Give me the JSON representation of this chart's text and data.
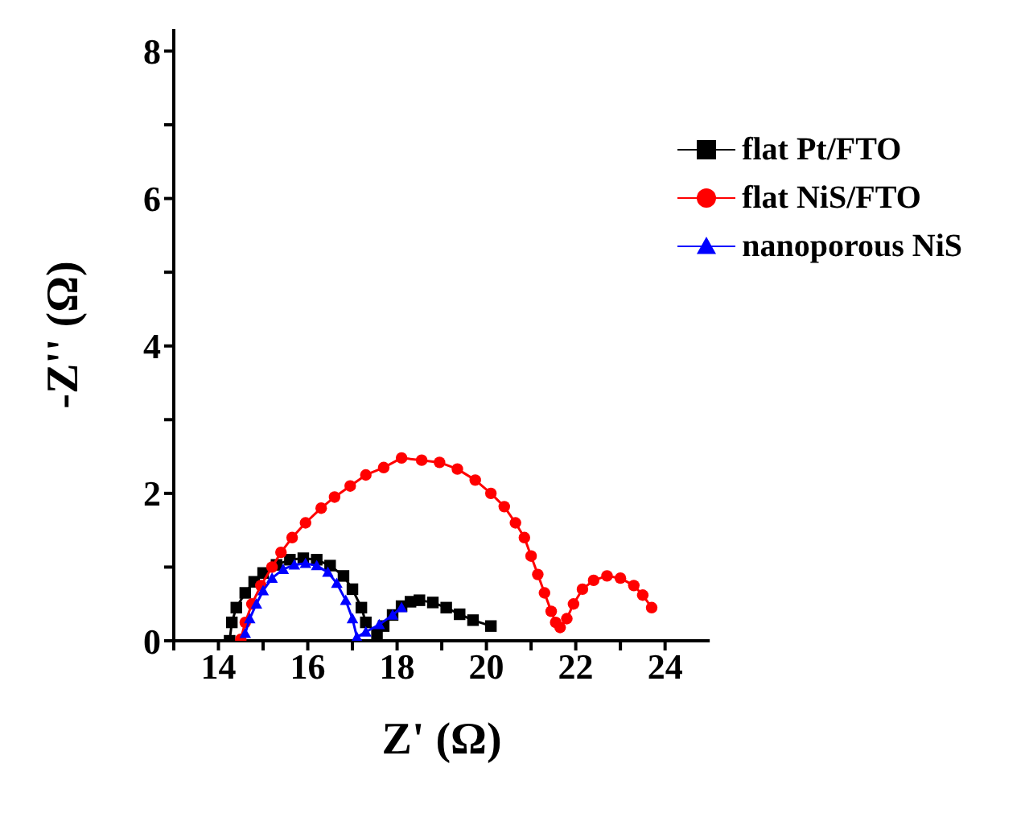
{
  "chart_data": {
    "type": "line",
    "xlabel": "Z' (Ω)",
    "ylabel": "-Z'' (Ω)",
    "xlim": [
      13,
      25
    ],
    "ylim": [
      0,
      8.3
    ],
    "xticks": [
      {
        "value": 13,
        "label": null
      },
      14,
      {
        "value": 15,
        "label": null
      },
      16,
      {
        "value": 17,
        "label": null
      },
      18,
      {
        "value": 19,
        "label": null
      },
      20,
      {
        "value": 21,
        "label": null
      },
      22,
      {
        "value": 23,
        "label": null
      },
      24
    ],
    "yticks": [
      0,
      {
        "value": 1,
        "label": null
      },
      2,
      {
        "value": 3,
        "label": null
      },
      4,
      {
        "value": 5,
        "label": null
      },
      6,
      {
        "value": 7,
        "label": null
      },
      8
    ],
    "grid": false,
    "legend": "top right",
    "line_style": "solid",
    "series": [
      {
        "name": "flat Pt/FTO",
        "color": "#000000",
        "marker": "square",
        "x": [
          14.25,
          14.3,
          14.4,
          14.6,
          14.8,
          15.0,
          15.3,
          15.6,
          15.9,
          16.2,
          16.5,
          16.8,
          17.0,
          17.2,
          17.3,
          17.55,
          17.7,
          17.9,
          18.1,
          18.3,
          18.5,
          18.8,
          19.1,
          19.4,
          19.7,
          20.1
        ],
        "values": [
          0.0,
          0.25,
          0.45,
          0.65,
          0.8,
          0.92,
          1.03,
          1.1,
          1.12,
          1.1,
          1.02,
          0.88,
          0.7,
          0.45,
          0.25,
          0.1,
          0.2,
          0.35,
          0.47,
          0.53,
          0.55,
          0.52,
          0.45,
          0.36,
          0.28,
          0.2
        ]
      },
      {
        "name": "flat NiS/FTO",
        "color": "#ff0000",
        "marker": "circle",
        "x": [
          14.5,
          14.6,
          14.75,
          14.95,
          15.2,
          15.4,
          15.65,
          15.95,
          16.3,
          16.6,
          16.95,
          17.3,
          17.7,
          18.1,
          18.55,
          18.95,
          19.35,
          19.75,
          20.1,
          20.4,
          20.65,
          20.85,
          21.0,
          21.15,
          21.3,
          21.45,
          21.55,
          21.65,
          21.8,
          21.95,
          22.15,
          22.4,
          22.7,
          23.0,
          23.3,
          23.5,
          23.7
        ],
        "values": [
          0.02,
          0.25,
          0.5,
          0.75,
          1.0,
          1.2,
          1.4,
          1.6,
          1.8,
          1.95,
          2.1,
          2.25,
          2.35,
          2.48,
          2.45,
          2.42,
          2.33,
          2.18,
          2.0,
          1.82,
          1.6,
          1.4,
          1.15,
          0.9,
          0.65,
          0.4,
          0.25,
          0.18,
          0.3,
          0.5,
          0.7,
          0.82,
          0.88,
          0.85,
          0.75,
          0.62,
          0.45
        ]
      },
      {
        "name": "nanoporous NiS",
        "color": "#0000ff",
        "marker": "triangle",
        "x": [
          14.6,
          14.7,
          14.85,
          15.0,
          15.2,
          15.45,
          15.7,
          15.95,
          16.2,
          16.45,
          16.65,
          16.85,
          17.0,
          17.1,
          17.3,
          17.6,
          17.9,
          18.1
        ],
        "values": [
          0.1,
          0.3,
          0.5,
          0.68,
          0.85,
          0.97,
          1.03,
          1.05,
          1.02,
          0.93,
          0.78,
          0.55,
          0.3,
          0.05,
          0.12,
          0.22,
          0.35,
          0.45
        ]
      }
    ]
  }
}
